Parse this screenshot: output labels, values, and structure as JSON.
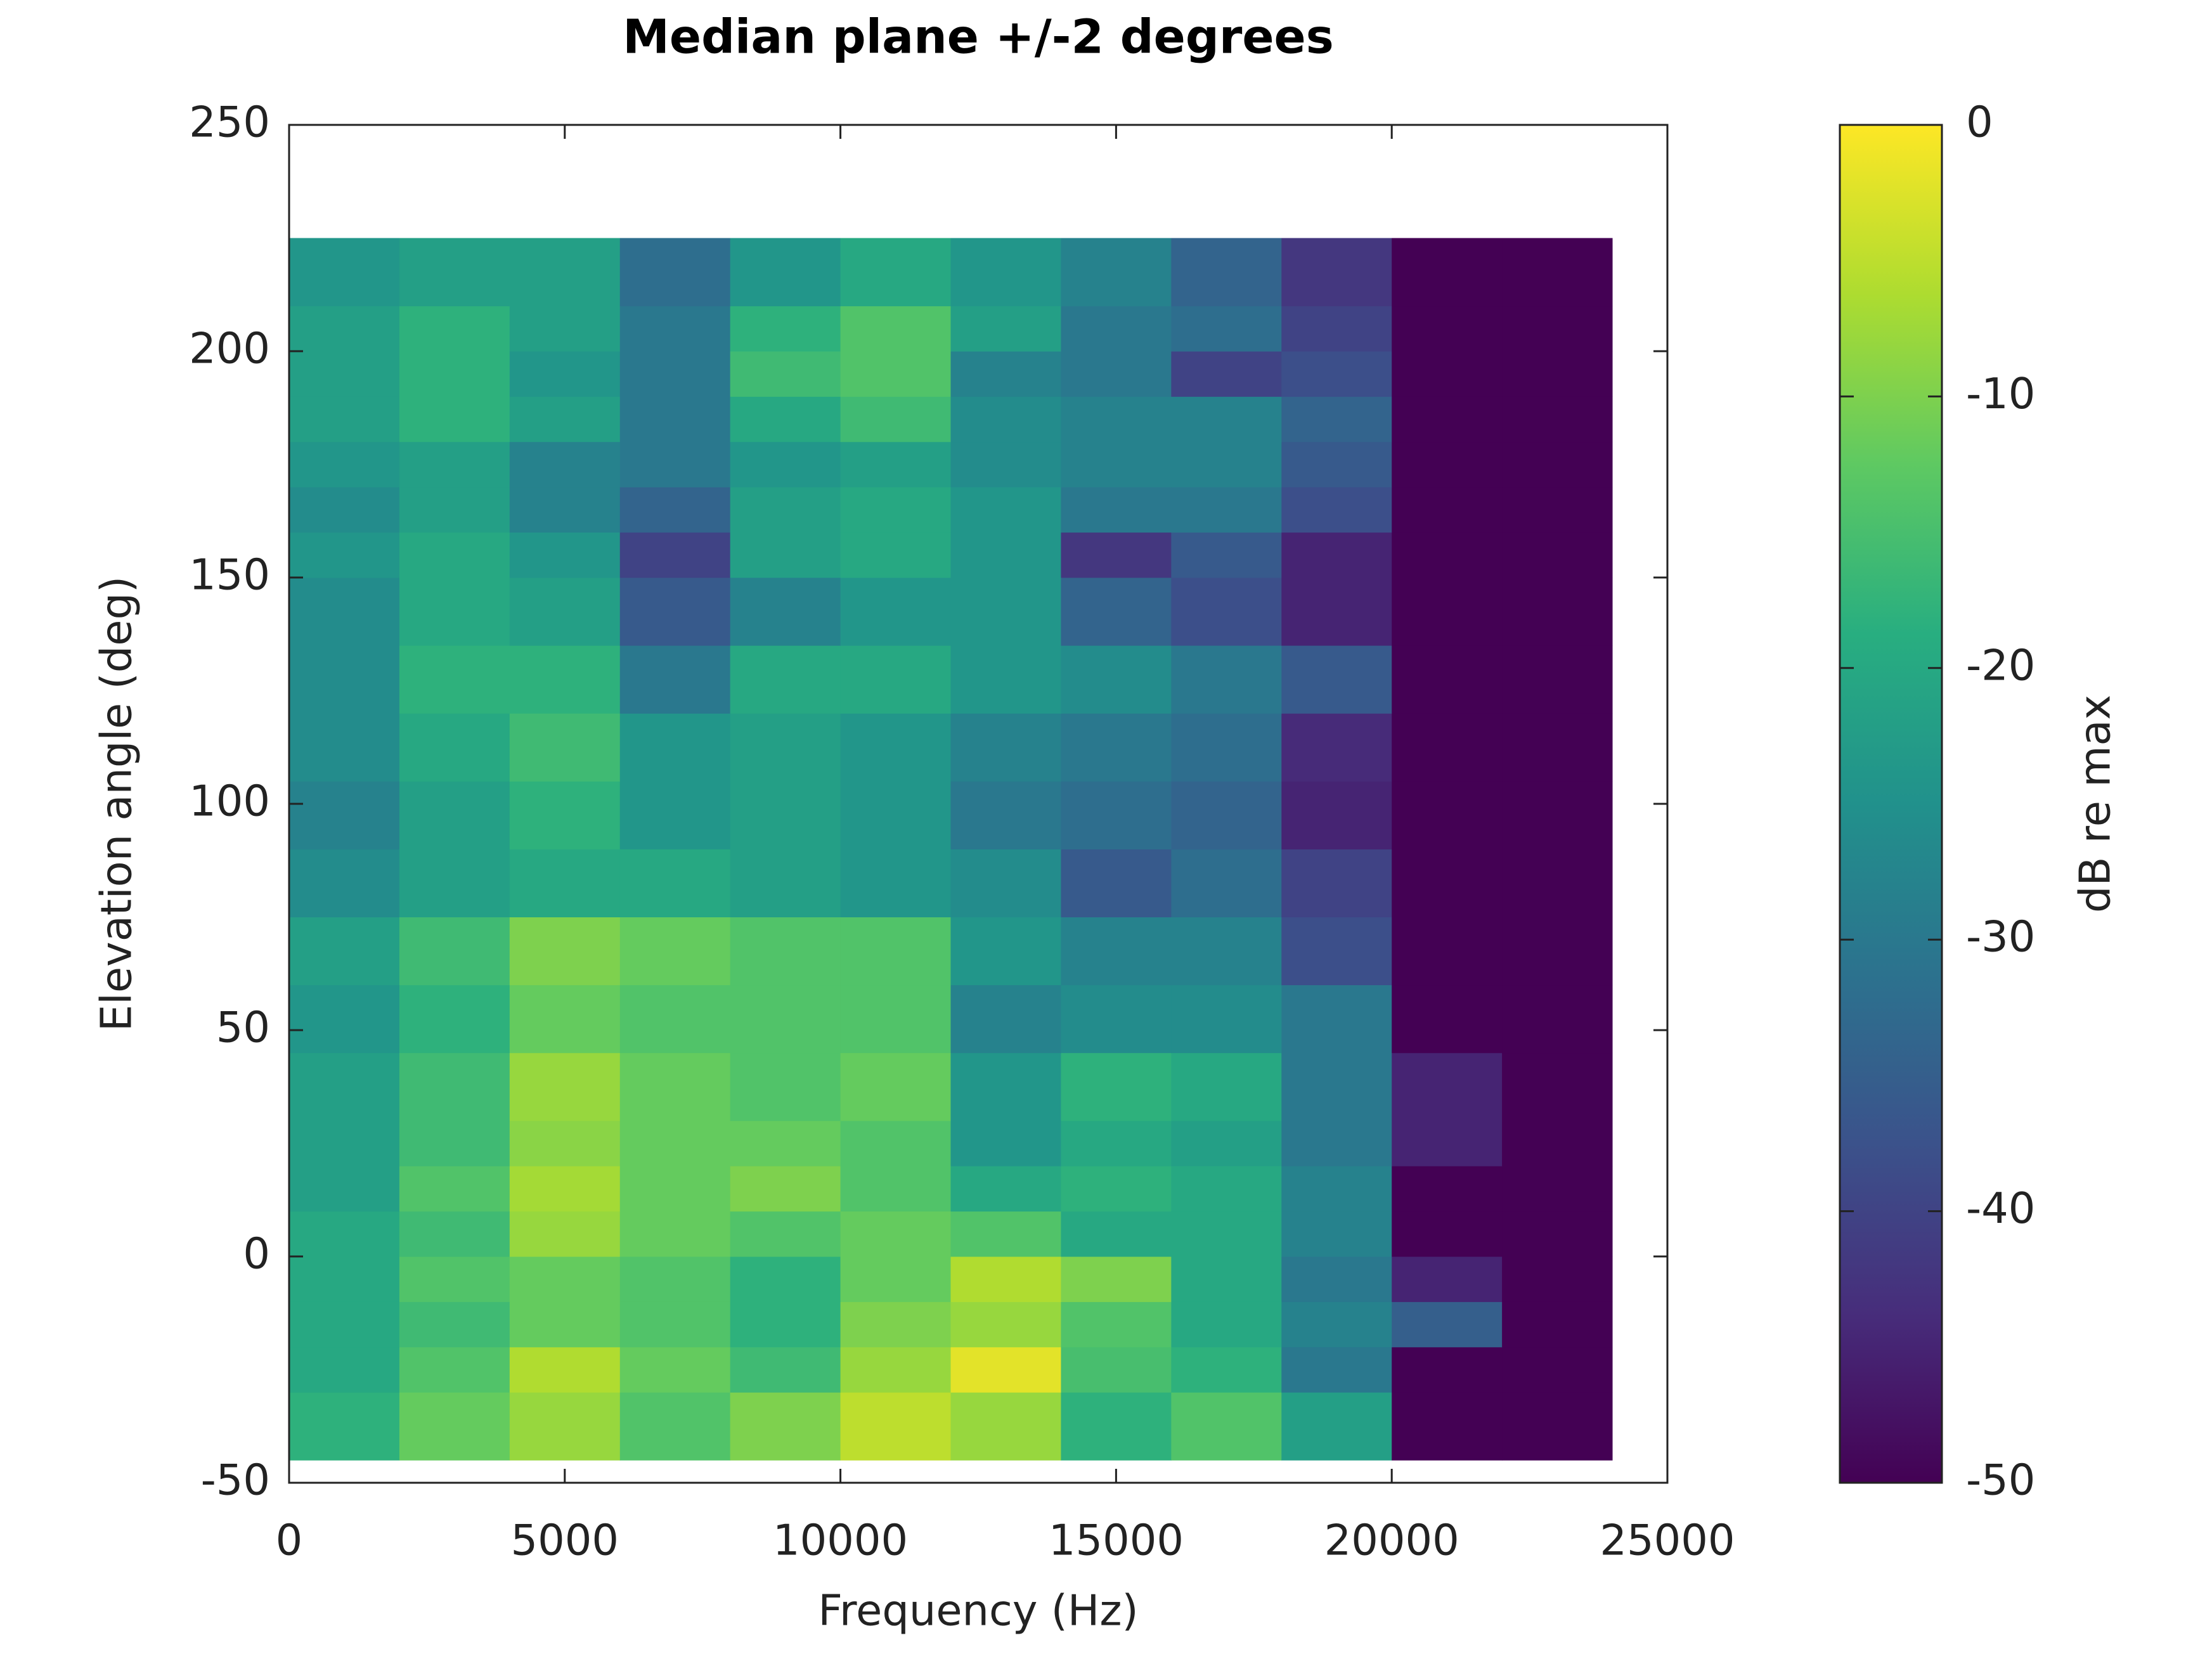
{
  "chart_data": {
    "type": "heatmap",
    "title": "Median plane +/-2 degrees",
    "xlabel": "Frequency (Hz)",
    "ylabel": "Elevation angle (deg)",
    "colorbar_label": "dB re max",
    "colormap": "viridis",
    "x_edges": [
      0,
      2000,
      4000,
      6000,
      8000,
      10000,
      12000,
      14000,
      16000,
      18000,
      20000,
      22000,
      24000
    ],
    "y_edges": [
      -45,
      -30,
      -20,
      -10,
      0,
      10,
      20,
      30,
      45,
      60,
      75,
      90,
      105,
      120,
      135,
      150,
      160,
      170,
      180,
      190,
      200,
      210,
      225
    ],
    "z": [
      [
        -18,
        -12,
        -8,
        -14,
        -10,
        -5,
        -8,
        -18,
        -14,
        -22,
        -50,
        -50
      ],
      [
        -20,
        -14,
        -6,
        -12,
        -16,
        -8,
        -2,
        -15,
        -18,
        -30,
        -50,
        -50
      ],
      [
        -20,
        -16,
        -12,
        -14,
        -18,
        -10,
        -8,
        -14,
        -20,
        -28,
        -35,
        -50
      ],
      [
        -20,
        -14,
        -12,
        -14,
        -18,
        -12,
        -6,
        -10,
        -20,
        -30,
        -45,
        -50
      ],
      [
        -20,
        -16,
        -8,
        -12,
        -14,
        -12,
        -14,
        -20,
        -20,
        -28,
        -50,
        -50
      ],
      [
        -22,
        -14,
        -7,
        -12,
        -10,
        -14,
        -20,
        -18,
        -20,
        -28,
        -50,
        -50
      ],
      [
        -22,
        -16,
        -9,
        -12,
        -12,
        -14,
        -24,
        -20,
        -22,
        -30,
        -45,
        -50
      ],
      [
        -22,
        -16,
        -8,
        -12,
        -14,
        -12,
        -24,
        -18,
        -20,
        -30,
        -45,
        -50
      ],
      [
        -24,
        -18,
        -12,
        -14,
        -14,
        -14,
        -28,
        -26,
        -26,
        -30,
        -50,
        -50
      ],
      [
        -22,
        -16,
        -10,
        -12,
        -14,
        -14,
        -24,
        -28,
        -28,
        -38,
        -50,
        -50
      ],
      [
        -26,
        -22,
        -20,
        -20,
        -22,
        -24,
        -26,
        -36,
        -32,
        -40,
        -50,
        -50
      ],
      [
        -28,
        -22,
        -18,
        -24,
        -22,
        -24,
        -30,
        -32,
        -34,
        -45,
        -50,
        -50
      ],
      [
        -26,
        -20,
        -16,
        -24,
        -22,
        -24,
        -28,
        -30,
        -32,
        -44,
        -50,
        -50
      ],
      [
        -26,
        -18,
        -18,
        -30,
        -20,
        -20,
        -24,
        -26,
        -30,
        -36,
        -50,
        -50
      ],
      [
        -26,
        -20,
        -22,
        -36,
        -28,
        -24,
        -24,
        -34,
        -38,
        -45,
        -50,
        -50
      ],
      [
        -24,
        -20,
        -24,
        -40,
        -22,
        -20,
        -24,
        -42,
        -36,
        -45,
        -50,
        -50
      ],
      [
        -26,
        -22,
        -28,
        -34,
        -22,
        -20,
        -24,
        -30,
        -30,
        -38,
        -50,
        -50
      ],
      [
        -24,
        -22,
        -28,
        -30,
        -24,
        -22,
        -26,
        -28,
        -28,
        -36,
        -50,
        -50
      ],
      [
        -22,
        -18,
        -22,
        -30,
        -20,
        -16,
        -26,
        -28,
        -28,
        -34,
        -50,
        -50
      ],
      [
        -22,
        -18,
        -24,
        -30,
        -16,
        -14,
        -28,
        -30,
        -40,
        -38,
        -50,
        -50
      ],
      [
        -22,
        -18,
        -22,
        -30,
        -18,
        -14,
        -22,
        -30,
        -32,
        -40,
        -50,
        -50
      ],
      [
        -24,
        -22,
        -22,
        -32,
        -24,
        -20,
        -24,
        -28,
        -34,
        -42,
        -50,
        -50
      ]
    ],
    "xlim": [
      0,
      25000
    ],
    "xticks": [
      0,
      5000,
      10000,
      15000,
      20000,
      25000
    ],
    "ylim": [
      -50,
      250
    ],
    "yticks": [
      -50,
      0,
      50,
      100,
      150,
      200,
      250
    ],
    "clim": [
      -50,
      0
    ],
    "cticks": [
      -50,
      -40,
      -30,
      -20,
      -10,
      0
    ]
  }
}
